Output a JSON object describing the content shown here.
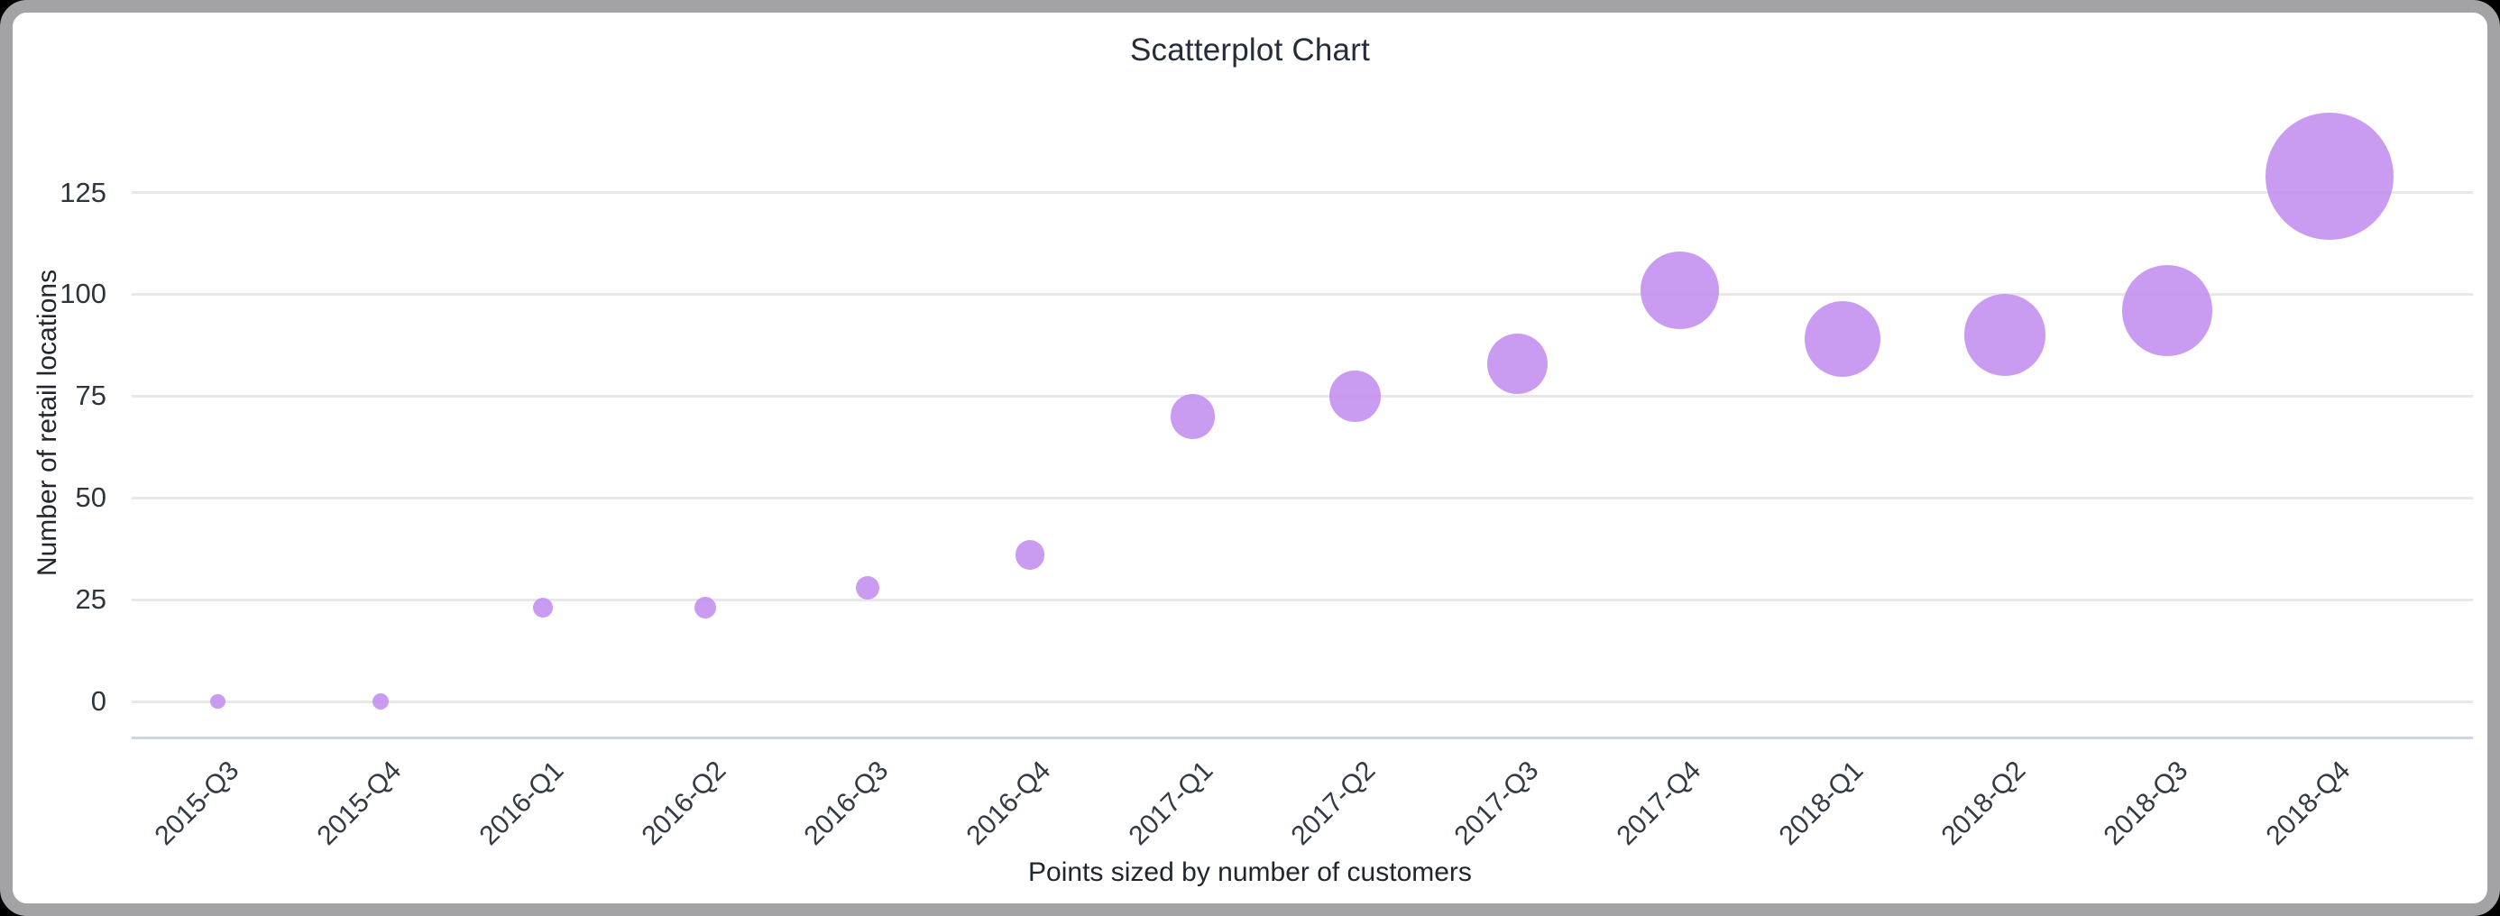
{
  "frame": {
    "background_color": "#000000",
    "card_background": "#ffffff",
    "card_border_color": "#a3a3a6"
  },
  "chart_data": {
    "type": "scatter",
    "title": "Scatterplot Chart",
    "xlabel": "Points sized by number of customers",
    "ylabel": "Number of retail locations",
    "categories": [
      "2015-Q3",
      "2015-Q4",
      "2016-Q1",
      "2016-Q2",
      "2016-Q3",
      "2016-Q4",
      "2017-Q1",
      "2017-Q2",
      "2017-Q3",
      "2017-Q4",
      "2018-Q1",
      "2018-Q2",
      "2018-Q3",
      "2018-Q4"
    ],
    "yticks": [
      0,
      25,
      50,
      75,
      100,
      125
    ],
    "ylim": [
      0,
      138
    ],
    "grid": true,
    "legend": "none",
    "x_tick_rotation_deg": -45,
    "series": [
      {
        "name": "Number of retail locations",
        "values": [
          0,
          0,
          23,
          23,
          28,
          36,
          70,
          75,
          83,
          101,
          89,
          90,
          96,
          129
        ],
        "point_radius_px": [
          8.3,
          9.3,
          11,
          12.2,
          13,
          16.2,
          24.7,
          28.3,
          33.7,
          43.3,
          42,
          45.3,
          50.3,
          70.7
        ],
        "color": "#c99cf2"
      }
    ],
    "colors": {
      "point_fill": "#c391f0",
      "gridline": "#e8e8e8",
      "baseline": "#ccd5e6",
      "tick_label": "#2f353d",
      "axis_title": "#21262e",
      "title": "#272d36"
    }
  }
}
